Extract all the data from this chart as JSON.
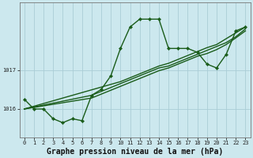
{
  "title": "Graphe pression niveau de la mer (hPa)",
  "bg_color": "#cce8ee",
  "grid_color": "#aacdd6",
  "line_color": "#1a5c1a",
  "hours": [
    0,
    1,
    2,
    3,
    4,
    5,
    6,
    7,
    8,
    9,
    10,
    11,
    12,
    13,
    14,
    15,
    16,
    17,
    18,
    19,
    20,
    21,
    22,
    23
  ],
  "series_jagged": [
    1016.25,
    1016.0,
    1016.0,
    1015.75,
    1015.65,
    1015.75,
    1015.7,
    1016.35,
    1016.5,
    1016.85,
    1017.55,
    1018.1,
    1018.3,
    1018.3,
    1018.3,
    1017.55,
    1017.55,
    1017.55,
    1017.45,
    1017.15,
    1017.05,
    1017.4,
    1018.0,
    1018.1
  ],
  "series_trend1": [
    1016.0,
    1016.05,
    1016.1,
    1016.15,
    1016.2,
    1016.25,
    1016.3,
    1016.35,
    1016.45,
    1016.55,
    1016.65,
    1016.75,
    1016.85,
    1016.95,
    1017.05,
    1017.1,
    1017.2,
    1017.3,
    1017.4,
    1017.5,
    1017.6,
    1017.7,
    1017.85,
    1018.05
  ],
  "series_trend2": [
    1016.0,
    1016.07,
    1016.14,
    1016.21,
    1016.28,
    1016.35,
    1016.42,
    1016.49,
    1016.56,
    1016.63,
    1016.7,
    1016.8,
    1016.9,
    1017.0,
    1017.1,
    1017.17,
    1017.27,
    1017.37,
    1017.47,
    1017.57,
    1017.65,
    1017.8,
    1017.95,
    1018.1
  ],
  "series_trend3": [
    1016.0,
    1016.04,
    1016.08,
    1016.12,
    1016.16,
    1016.2,
    1016.24,
    1016.28,
    1016.38,
    1016.48,
    1016.58,
    1016.68,
    1016.78,
    1016.88,
    1016.98,
    1017.05,
    1017.15,
    1017.25,
    1017.35,
    1017.42,
    1017.52,
    1017.65,
    1017.82,
    1018.0
  ],
  "ylim_min": 1015.28,
  "ylim_max": 1018.72,
  "yticks": [
    1016,
    1017
  ],
  "xlim_min": -0.5,
  "xlim_max": 23.5,
  "marker_size": 2.2,
  "line_width": 1.0,
  "title_fontsize": 7.0,
  "tick_fontsize": 5.0
}
